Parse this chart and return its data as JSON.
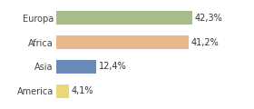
{
  "categories": [
    "Europa",
    "Africa",
    "Asia",
    "America"
  ],
  "values": [
    42.3,
    41.2,
    12.4,
    4.1
  ],
  "labels": [
    "42,3%",
    "41,2%",
    "12,4%",
    "4,1%"
  ],
  "bar_colors": [
    "#a8bc8a",
    "#e8b98a",
    "#6b8cba",
    "#e8d87a"
  ],
  "xlim": [
    0,
    52
  ],
  "background_color": "#ffffff",
  "label_fontsize": 7.0,
  "category_fontsize": 7.0,
  "bar_height": 0.55
}
